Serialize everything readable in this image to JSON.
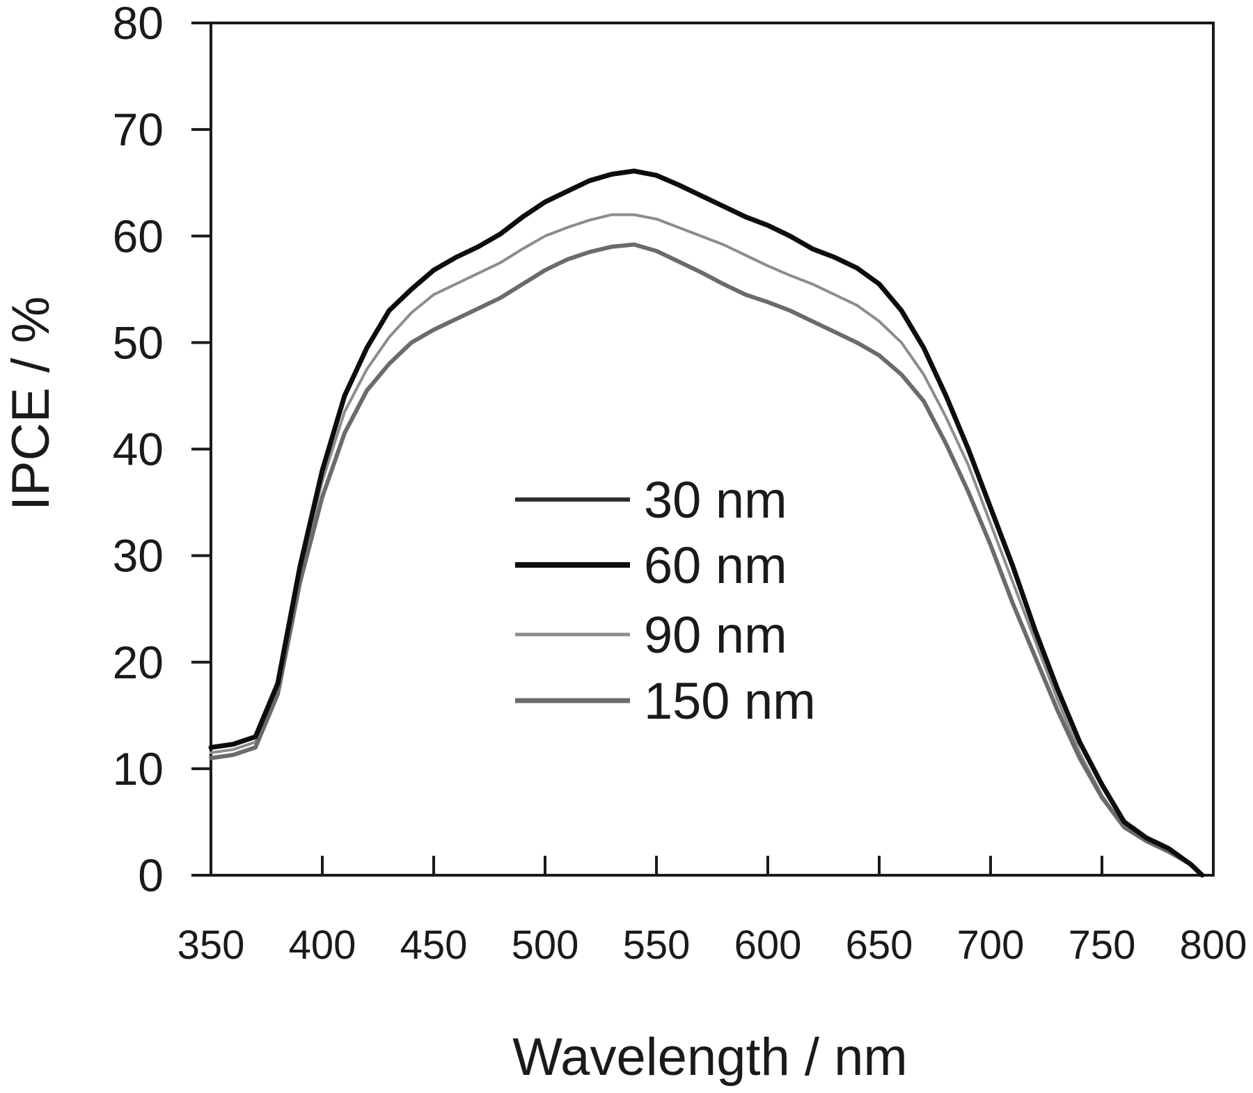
{
  "chart_data": {
    "type": "line",
    "title": "",
    "xlabel": "Wavelength / nm",
    "ylabel": "IPCE / %",
    "xlim": [
      350,
      800
    ],
    "ylim": [
      0,
      80
    ],
    "x_ticks": [
      350,
      400,
      450,
      500,
      550,
      600,
      650,
      700,
      750,
      800
    ],
    "y_ticks": [
      0,
      10,
      20,
      30,
      40,
      50,
      60,
      70,
      80
    ],
    "grid": false,
    "legend_position": "center",
    "x": [
      350,
      360,
      370,
      380,
      390,
      400,
      410,
      420,
      430,
      440,
      450,
      460,
      470,
      480,
      490,
      500,
      510,
      520,
      530,
      540,
      550,
      560,
      570,
      580,
      590,
      600,
      610,
      620,
      630,
      640,
      650,
      660,
      670,
      680,
      690,
      700,
      710,
      720,
      730,
      740,
      750,
      760,
      770,
      780,
      790,
      795
    ],
    "series": [
      {
        "name": "30 nm",
        "color": "#2e2e2e",
        "values": [
          12,
          12.3,
          13,
          18,
          29,
          38,
          45,
          49.5,
          53,
          55,
          56.8,
          58,
          59,
          60.2,
          61.8,
          63.2,
          64.2,
          65.2,
          65.8,
          66.1,
          65.7,
          64.8,
          63.8,
          62.8,
          61.8,
          61,
          60,
          58.8,
          58,
          57,
          55.5,
          53,
          49.5,
          45,
          40,
          34.5,
          29,
          23,
          17.5,
          12.5,
          8.5,
          5,
          3.5,
          2.5,
          1,
          0
        ]
      },
      {
        "name": "60 nm",
        "color": "#0d0d0d",
        "values": [
          12,
          12.3,
          13,
          18,
          29,
          38,
          45,
          49.5,
          53,
          55,
          56.8,
          58,
          59,
          60.2,
          61.8,
          63.2,
          64.2,
          65.2,
          65.8,
          66.1,
          65.7,
          64.8,
          63.8,
          62.8,
          61.8,
          61,
          60,
          58.8,
          58,
          57,
          55.5,
          53,
          49.5,
          45,
          40,
          34.5,
          29,
          23,
          17.5,
          12.5,
          8.5,
          5,
          3.5,
          2.5,
          1,
          0
        ]
      },
      {
        "name": "90 nm",
        "color": "#8c8c8c",
        "values": [
          11.5,
          11.8,
          12.5,
          17.5,
          28.5,
          37,
          43.5,
          47.5,
          50.5,
          52.8,
          54.5,
          55.5,
          56.5,
          57.5,
          58.8,
          60,
          60.8,
          61.5,
          62,
          62,
          61.6,
          60.8,
          60,
          59.2,
          58.2,
          57.2,
          56.3,
          55.5,
          54.5,
          53.5,
          52,
          50,
          47,
          43,
          38.5,
          33,
          27.5,
          22,
          16.5,
          11.5,
          7.5,
          4.5,
          3.2,
          2.2,
          1,
          0
        ]
      },
      {
        "name": "150 nm",
        "color": "#6b6b6b",
        "values": [
          11,
          11.3,
          12,
          17,
          27.5,
          35.5,
          41.5,
          45.5,
          48,
          50,
          51.2,
          52.2,
          53.2,
          54.2,
          55.5,
          56.8,
          57.8,
          58.5,
          59,
          59.2,
          58.6,
          57.6,
          56.6,
          55.5,
          54.5,
          53.8,
          53,
          52,
          51,
          50,
          48.8,
          47,
          44.5,
          40.5,
          36,
          31,
          25.5,
          20.5,
          15.5,
          11,
          7.3,
          4.5,
          3.2,
          2.2,
          1,
          0
        ]
      }
    ]
  }
}
